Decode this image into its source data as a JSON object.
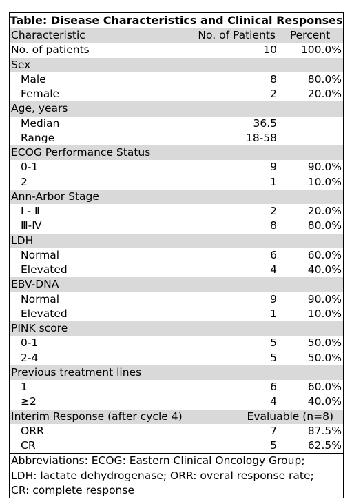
{
  "title": "Table: Disease Characteristics and Clinical Responses",
  "header": {
    "characteristic": "Characteristic",
    "patients": "No. of Patients",
    "percent": "Percent"
  },
  "rows": [
    {
      "label": "No. of patients",
      "patients": "10",
      "percent": "100.0%",
      "kind": "plain"
    },
    {
      "label": "Sex",
      "patients": "",
      "percent": "",
      "kind": "group"
    },
    {
      "label": "Male",
      "patients": "8",
      "percent": "80.0%",
      "kind": "sub"
    },
    {
      "label": "Female",
      "patients": "2",
      "percent": "20.0%",
      "kind": "sub"
    },
    {
      "label": "Age, years",
      "patients": "",
      "percent": "",
      "kind": "group"
    },
    {
      "label": "Median",
      "patients": "36.5",
      "percent": "",
      "kind": "sub"
    },
    {
      "label": "Range",
      "patients": "18-58",
      "percent": "",
      "kind": "sub"
    },
    {
      "label": "ECOG Performance Status",
      "patients": "",
      "percent": "",
      "kind": "group"
    },
    {
      "label": "0-1",
      "patients": "9",
      "percent": "90.0%",
      "kind": "sub"
    },
    {
      "label": "2",
      "patients": "1",
      "percent": "10.0%",
      "kind": "sub"
    },
    {
      "label": "Ann-Arbor Stage",
      "patients": "",
      "percent": "",
      "kind": "group"
    },
    {
      "label": "Ⅰ - Ⅱ",
      "patients": "2",
      "percent": "20.0%",
      "kind": "sub"
    },
    {
      "label": "Ⅲ-Ⅳ",
      "patients": "8",
      "percent": "80.0%",
      "kind": "sub"
    },
    {
      "label": "LDH",
      "patients": "",
      "percent": "",
      "kind": "group"
    },
    {
      "label": "Normal",
      "patients": "6",
      "percent": "60.0%",
      "kind": "sub"
    },
    {
      "label": "Elevated",
      "patients": "4",
      "percent": "40.0%",
      "kind": "sub"
    },
    {
      "label": "EBV-DNA",
      "patients": "",
      "percent": "",
      "kind": "group"
    },
    {
      "label": "Normal",
      "patients": "9",
      "percent": "90.0%",
      "kind": "sub"
    },
    {
      "label": "Elevated",
      "patients": "1",
      "percent": "10.0%",
      "kind": "sub"
    },
    {
      "label": "PINK score",
      "patients": "",
      "percent": "",
      "kind": "group"
    },
    {
      "label": "0-1",
      "patients": "5",
      "percent": "50.0%",
      "kind": "sub"
    },
    {
      "label": "2-4",
      "patients": "5",
      "percent": "50.0%",
      "kind": "sub"
    },
    {
      "label": "Previous treatment lines",
      "patients": "",
      "percent": "",
      "kind": "group"
    },
    {
      "label": "1",
      "patients": "6",
      "percent": "60.0%",
      "kind": "sub"
    },
    {
      "label": "≥2",
      "patients": "4",
      "percent": "40.0%",
      "kind": "sub"
    }
  ],
  "interim": {
    "label": "Interim Response (after cycle 4)",
    "note": "Evaluable (n=8)"
  },
  "interim_rows": [
    {
      "label": "ORR",
      "patients": "7",
      "percent": "87.5%"
    },
    {
      "label": "CR",
      "patients": "5",
      "percent": "62.5%"
    }
  ],
  "footnote": [
    "Abbreviations: ECOG: Eastern Clinical Oncology Group;",
    "LDH: lactate dehydrogenase; ORR: overal response rate;",
    "CR: complete response"
  ]
}
